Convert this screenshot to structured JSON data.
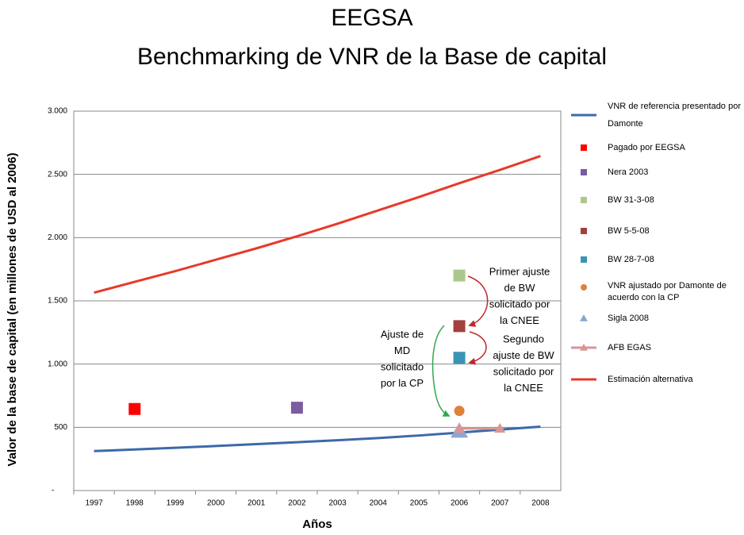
{
  "chart_data": {
    "type": "line",
    "title": "EEGSA",
    "subtitle": "Benchmarking de VNR de la Base de capital",
    "y_label": "Valor de la base de capital (en millones de USD al 2006)",
    "x_label": "Años",
    "xlim": [
      1996.5,
      2008.5
    ],
    "xticks": [
      1997,
      1998,
      1999,
      2000,
      2001,
      2002,
      2003,
      2004,
      2005,
      2006,
      2007,
      2008
    ],
    "ylim": [
      0,
      3000
    ],
    "yticks": [
      {
        "value": 0,
        "label": "-"
      },
      500,
      {
        "value": 1000,
        "label": "1.000"
      },
      {
        "value": 1500,
        "label": "1.500"
      },
      {
        "value": 2000,
        "label": "2.000"
      },
      {
        "value": 2500,
        "label": "2.500"
      },
      {
        "value": 3000,
        "label": "3.000"
      }
    ],
    "grid": true,
    "legend": "right",
    "series": [
      {
        "name": "VNR de referencia presentado por Damonte",
        "color": "#3d69a8",
        "line": true,
        "marker": "none",
        "x": [
          1997,
          1998,
          1999,
          2000,
          2001,
          2002,
          2003,
          2004,
          2005,
          2006,
          2007,
          2008
        ],
        "values": [
          312,
          325,
          338,
          352,
          367,
          382,
          398,
          415,
          435,
          458,
          482,
          505
        ]
      },
      {
        "name": "Pagado por EEGSA",
        "color": "#ff0000",
        "line": false,
        "marker": "square",
        "x": [
          1998
        ],
        "values": [
          645
        ]
      },
      {
        "name": "Nera 2003",
        "color": "#7b5c9e",
        "line": false,
        "marker": "square",
        "x": [
          2002
        ],
        "values": [
          655
        ]
      },
      {
        "name": "BW 31-3-08",
        "color": "#a9c98b",
        "line": false,
        "marker": "square",
        "x": [
          2006
        ],
        "values": [
          1700
        ]
      },
      {
        "name": "BW 5-5-08",
        "color": "#a3403d",
        "line": false,
        "marker": "square",
        "x": [
          2006
        ],
        "values": [
          1300
        ]
      },
      {
        "name": "BW 28-7-08",
        "color": "#3a95b3",
        "line": false,
        "marker": "square",
        "x": [
          2006
        ],
        "values": [
          1050
        ]
      },
      {
        "name": "VNR ajustado por Damonte de acuerdo con la CP",
        "color": "#e0813b",
        "line": false,
        "marker": "circle",
        "x": [
          2006
        ],
        "values": [
          630
        ]
      },
      {
        "name": "Sigla 2008",
        "color": "#8ea5d3",
        "line": false,
        "marker": "triangle",
        "x": [
          2006
        ],
        "values": [
          470
        ]
      },
      {
        "name": "AFB EGAS",
        "color": "#d99694",
        "line": true,
        "marker": "triangle",
        "x": [
          2006,
          2007
        ],
        "values": [
          490,
          490
        ]
      },
      {
        "name": "Estimación alternativa",
        "color": "#e8392b",
        "line": true,
        "marker": "none",
        "x": [
          1997,
          1998,
          1999,
          2000,
          2001,
          2002,
          2003,
          2004,
          2005,
          2006,
          2007,
          2008
        ],
        "values": [
          1565,
          1650,
          1735,
          1825,
          1915,
          2010,
          2110,
          2215,
          2320,
          2430,
          2535,
          2645
        ]
      }
    ],
    "annotations": [
      {
        "lines": [
          "Primer ajuste",
          "de BW",
          "solicitado por",
          "la CNEE"
        ]
      },
      {
        "lines": [
          "Segundo",
          "ajuste de BW",
          "solicitado por",
          "la CNEE"
        ]
      },
      {
        "lines": [
          "Ajuste de",
          "MD",
          "solicitado",
          "por la CP"
        ]
      }
    ]
  }
}
